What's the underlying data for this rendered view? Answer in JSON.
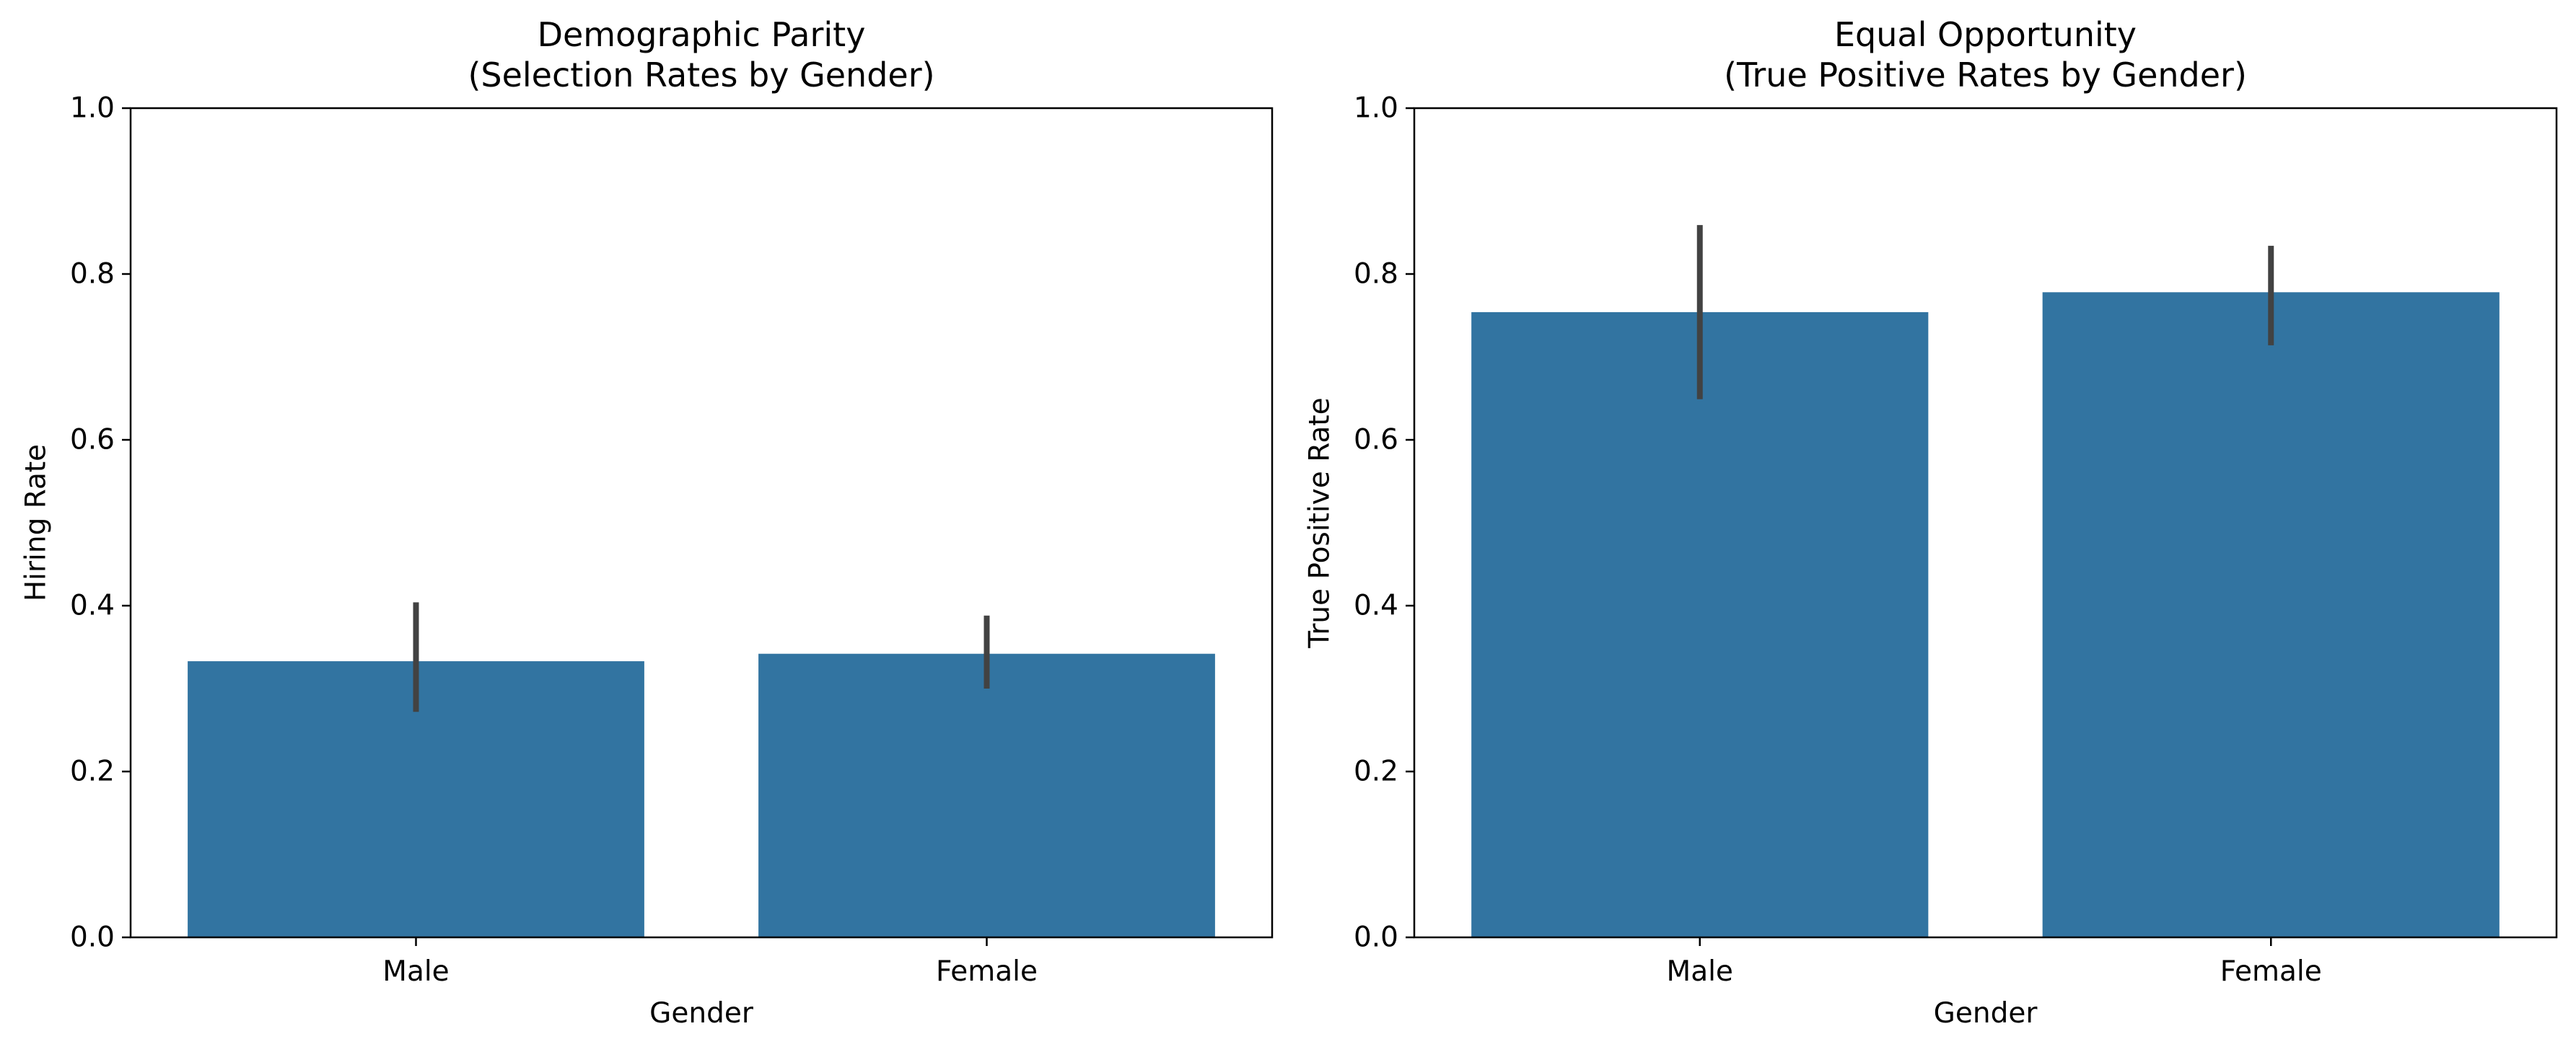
{
  "chart_data": [
    {
      "type": "bar",
      "title": "Demographic Parity\n(Selection Rates by Gender)",
      "xlabel": "Gender",
      "ylabel": "Hiring Rate",
      "categories": [
        "Male",
        "Female"
      ],
      "values": [
        0.333,
        0.342
      ],
      "error_bars": [
        [
          0.272,
          0.404
        ],
        [
          0.3,
          0.388
        ]
      ],
      "ylim": [
        0,
        1.0
      ],
      "yticks": [
        0.0,
        0.2,
        0.4,
        0.6,
        0.8,
        1.0
      ],
      "ytick_labels": [
        "0.0",
        "0.2",
        "0.4",
        "0.6",
        "0.8",
        "1.0"
      ],
      "grid": false,
      "bar_color": "#3274a1",
      "error_color": "#424242"
    },
    {
      "type": "bar",
      "title": "Equal Opportunity\n(True Positive Rates by Gender)",
      "xlabel": "Gender",
      "ylabel": "True Positive Rate",
      "categories": [
        "Male",
        "Female"
      ],
      "values": [
        0.754,
        0.778
      ],
      "error_bars": [
        [
          0.649,
          0.859
        ],
        [
          0.714,
          0.834
        ]
      ],
      "ylim": [
        0,
        1.0
      ],
      "yticks": [
        0.0,
        0.2,
        0.4,
        0.6,
        0.8,
        1.0
      ],
      "ytick_labels": [
        "0.0",
        "0.2",
        "0.4",
        "0.6",
        "0.8",
        "1.0"
      ],
      "grid": false,
      "bar_color": "#3274a1",
      "error_color": "#424242"
    }
  ]
}
